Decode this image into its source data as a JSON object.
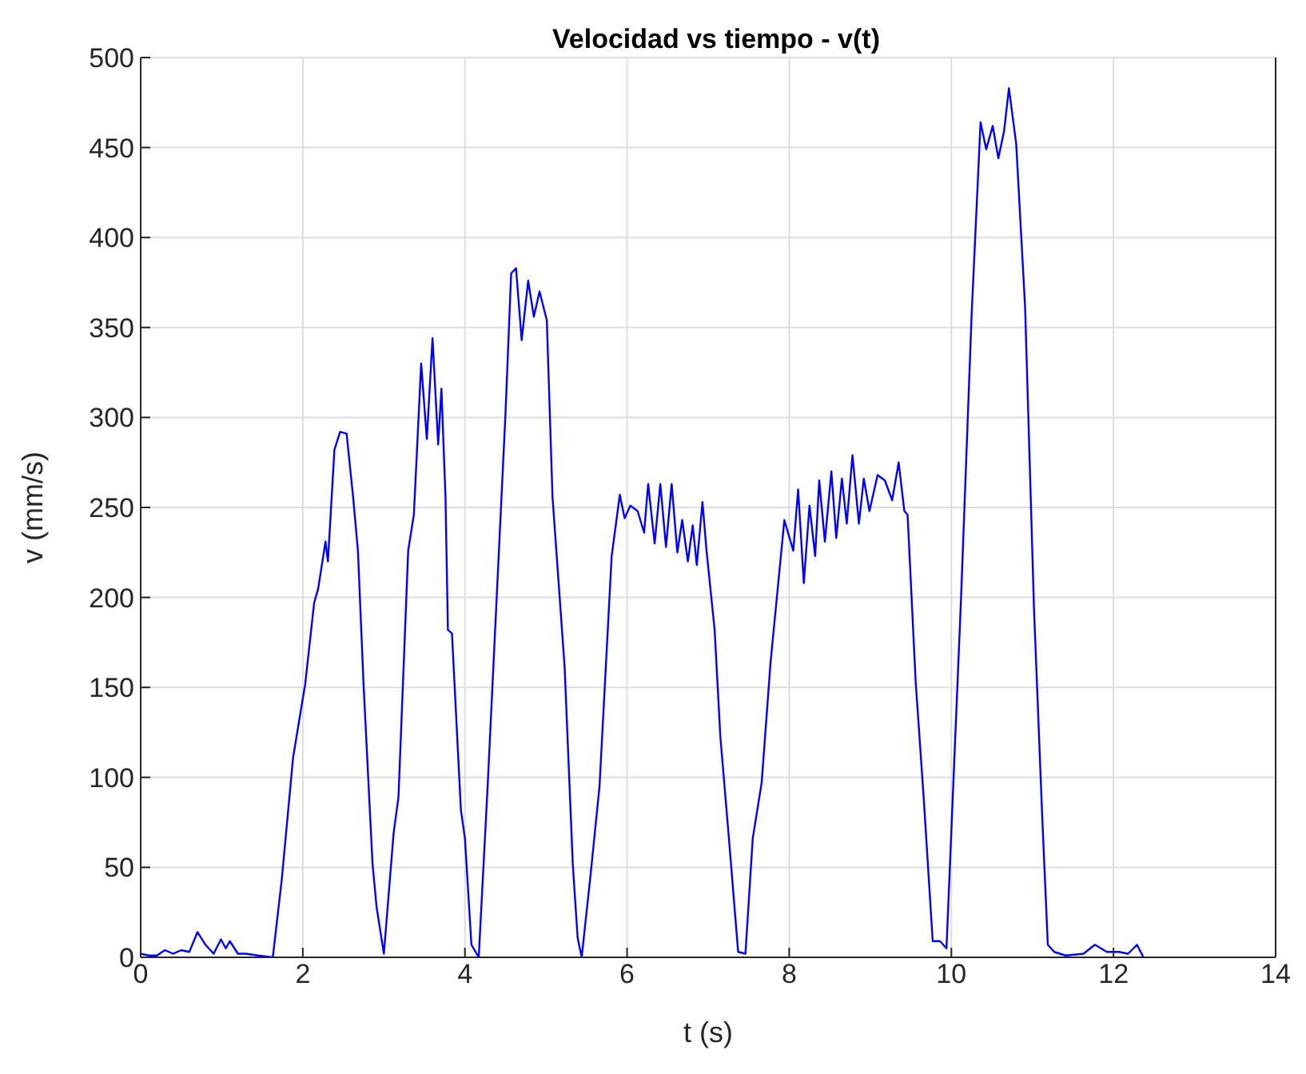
{
  "chart_data": {
    "type": "line",
    "title": "Velocidad vs tiempo - v(t)",
    "xlabel": "t (s)",
    "ylabel": "v (mm/s)",
    "xlim": [
      0,
      14
    ],
    "xticks": [
      0,
      2,
      4,
      6,
      8,
      10,
      12,
      14
    ],
    "ylim": [
      0,
      500
    ],
    "yticks": [
      0,
      50,
      100,
      150,
      200,
      250,
      300,
      350,
      400,
      450,
      500
    ],
    "grid": true,
    "series": [
      {
        "color": "#0000ff",
        "x": [
          0,
          0.1,
          0.2,
          0.3,
          0.4,
          0.5,
          0.6,
          0.7,
          0.8,
          0.9,
          0.99,
          1.05,
          1.1,
          1.2,
          1.3,
          1.45,
          1.63,
          1.74,
          1.88,
          2.03,
          2.14,
          2.19,
          2.28,
          2.31,
          2.39,
          2.46,
          2.54,
          2.62,
          2.68,
          2.75,
          2.86,
          2.91,
          3.0,
          3.12,
          3.18,
          3.3,
          3.37,
          3.46,
          3.53,
          3.6,
          3.67,
          3.71,
          3.76,
          3.79,
          3.84,
          3.95,
          4.0,
          4.08,
          4.17,
          4.28,
          4.5,
          4.57,
          4.63,
          4.7,
          4.78,
          4.85,
          4.92,
          5.01,
          5.08,
          5.23,
          5.33,
          5.39,
          5.44,
          5.55,
          5.66,
          5.81,
          5.91,
          5.97,
          6.04,
          6.13,
          6.21,
          6.26,
          6.34,
          6.41,
          6.48,
          6.55,
          6.62,
          6.68,
          6.75,
          6.81,
          6.86,
          6.93,
          6.98,
          7.08,
          7.15,
          7.26,
          7.37,
          7.46,
          7.55,
          7.66,
          7.77,
          7.94,
          8.05,
          8.11,
          8.18,
          8.25,
          8.32,
          8.37,
          8.44,
          8.52,
          8.58,
          8.65,
          8.71,
          8.78,
          8.86,
          8.92,
          8.99,
          9.09,
          9.18,
          9.27,
          9.35,
          9.42,
          9.46,
          9.56,
          9.66,
          9.77,
          9.86,
          9.94,
          10.12,
          10.25,
          10.36,
          10.43,
          10.51,
          10.58,
          10.65,
          10.71,
          10.8,
          10.91,
          11.02,
          11.12,
          11.19,
          11.27,
          11.41,
          11.63,
          11.77,
          11.92,
          12.07,
          12.18,
          12.29,
          12.37
        ],
        "values": [
          2,
          1,
          1,
          4,
          2,
          4,
          3,
          14,
          7,
          2,
          10,
          5,
          9,
          2,
          2,
          1,
          0,
          43,
          111,
          152,
          197,
          205,
          231,
          220,
          282,
          292,
          291,
          256,
          226,
          151,
          52,
          28,
          2,
          69,
          89,
          226,
          246,
          330,
          288,
          344,
          285,
          316,
          256,
          182,
          180,
          82,
          66,
          7,
          0,
          95,
          302,
          380,
          383,
          343,
          376,
          356,
          370,
          354,
          256,
          161,
          52,
          11,
          0,
          46,
          95,
          223,
          257,
          244,
          251,
          248,
          236,
          263,
          230,
          263,
          228,
          263,
          225,
          243,
          220,
          240,
          218,
          253,
          226,
          182,
          123,
          64,
          3,
          2,
          66,
          97,
          164,
          243,
          226,
          260,
          208,
          251,
          223,
          265,
          231,
          270,
          233,
          266,
          241,
          279,
          241,
          266,
          248,
          268,
          265,
          254,
          275,
          248,
          246,
          153,
          88,
          9,
          9,
          5,
          200,
          357,
          464,
          449,
          462,
          444,
          459,
          483,
          452,
          361,
          193,
          79,
          7,
          3,
          1,
          2,
          7,
          3,
          3,
          2,
          7,
          0
        ]
      }
    ]
  }
}
